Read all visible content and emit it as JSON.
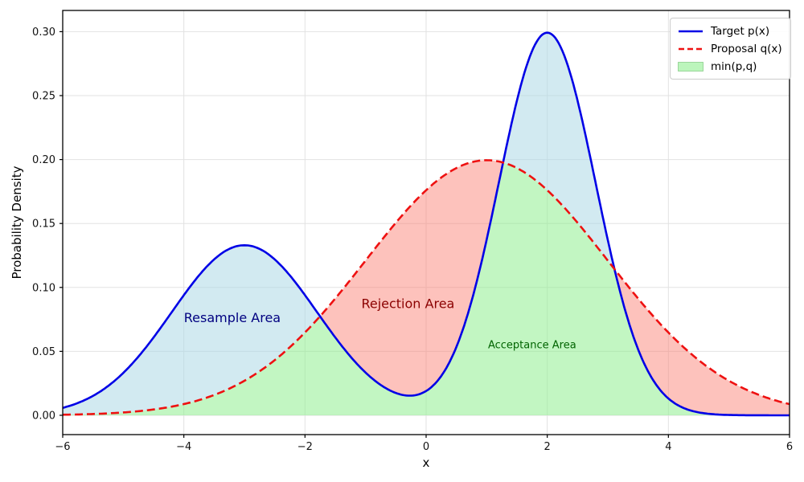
{
  "figure": {
    "background": "#ffffff"
  },
  "chart_data": {
    "type": "line",
    "title": "",
    "xlabel": "x",
    "ylabel": "Probability Density",
    "xlim": [
      -6,
      6
    ],
    "ylim": [
      -0.0151,
      0.3166
    ],
    "grid": true,
    "grid_color": "#e2e2e2",
    "xticks": {
      "values": [
        -6,
        -4,
        -2,
        0,
        2,
        4,
        6
      ],
      "labels": [
        "−6",
        "−4",
        "−2",
        "0",
        "2",
        "4",
        "6"
      ]
    },
    "yticks": {
      "values": [
        0.0,
        0.05,
        0.1,
        0.15,
        0.2,
        0.25,
        0.3
      ],
      "labels": [
        "0.00",
        "0.05",
        "0.10",
        "0.15",
        "0.20",
        "0.25",
        "0.30"
      ]
    },
    "series": [
      {
        "name": "Target p(x)",
        "style": "solid",
        "color": "#0000e6",
        "linewidth": 2.6,
        "distribution": "gaussian-mixture",
        "components": [
          {
            "weight": 0.4,
            "mean": -3,
            "sigma": 1.2
          },
          {
            "weight": 0.6,
            "mean": 2,
            "sigma": 0.8
          }
        ]
      },
      {
        "name": "Proposal q(x)",
        "style": "dashed",
        "color": "#ee1111",
        "linewidth": 2.6,
        "distribution": "gaussian",
        "components": [
          {
            "weight": 1.0,
            "mean": 1,
            "sigma": 2.0
          }
        ]
      }
    ],
    "samples": {
      "x": [
        -6,
        -5.5,
        -5,
        -4.5,
        -4,
        -3.5,
        -3,
        -2.5,
        -2,
        -1.5,
        -1,
        -0.5,
        0,
        0.5,
        1,
        1.5,
        2,
        2.5,
        3,
        3.5,
        4,
        4.5,
        5,
        5.5,
        6
      ],
      "target_p": [
        0.0058,
        0.0152,
        0.0332,
        0.0609,
        0.094,
        0.1219,
        0.133,
        0.1219,
        0.094,
        0.0609,
        0.0334,
        0.0174,
        0.019,
        0.0535,
        0.1375,
        0.2462,
        0.2992,
        0.2461,
        0.137,
        0.0516,
        0.0131,
        0.0023,
        0.0003,
        0.0,
        0.0
      ],
      "proposal_q": [
        0.0004,
        0.001,
        0.0022,
        0.0045,
        0.0088,
        0.0159,
        0.027,
        0.0431,
        0.0648,
        0.0913,
        0.121,
        0.1506,
        0.176,
        0.1933,
        0.1995,
        0.1933,
        0.176,
        0.1506,
        0.121,
        0.0913,
        0.0648,
        0.0431,
        0.027,
        0.0159,
        0.0088
      ]
    },
    "regions": [
      {
        "name": "Resample Area",
        "fill": "rgba(173,216,230,0.55)",
        "between": [
          "min(p,q)",
          "p"
        ]
      },
      {
        "name": "Rejection Area",
        "fill": "rgba(250,128,114,0.48)",
        "between": [
          "min(p,q)",
          "q"
        ]
      },
      {
        "name": "Acceptance Area",
        "fill": "rgba(144,238,144,0.55)",
        "between": [
          "0",
          "min(p,q)"
        ]
      }
    ],
    "annotations": [
      {
        "id": "resample-area-label",
        "text": "Resample Area",
        "x": -3.2,
        "y": 0.073,
        "color": "#000080",
        "fontsize": 16
      },
      {
        "id": "rejection-area-label",
        "text": "Rejection Area",
        "x": -0.3,
        "y": 0.084,
        "color": "#8B0000",
        "fontsize": 16
      },
      {
        "id": "acceptance-area-label",
        "text": "Acceptance Area",
        "x": 1.75,
        "y": 0.0525,
        "color": "#006400",
        "fontsize": 13
      }
    ],
    "legend": {
      "position": "upper right",
      "entries": [
        {
          "label": "Target p(x)",
          "swatch": "line",
          "color": "#0000e6"
        },
        {
          "label": "Proposal q(x)",
          "swatch": "dashed-line",
          "color": "#ee1111"
        },
        {
          "label": "min(p,q)",
          "swatch": "patch",
          "color": "rgba(144,238,144,0.6)"
        }
      ]
    },
    "key_points": {
      "target_peaks": [
        {
          "x": -3,
          "y": 0.133
        },
        {
          "x": 2,
          "y": 0.299
        }
      ],
      "proposal_peak": {
        "x": 1,
        "y": 0.199
      },
      "intersections": [
        {
          "x": -1.77,
          "y": 0.077
        },
        {
          "x": 1.3,
          "y": 0.197
        },
        {
          "x": 3.09,
          "y": 0.115
        }
      ]
    }
  }
}
